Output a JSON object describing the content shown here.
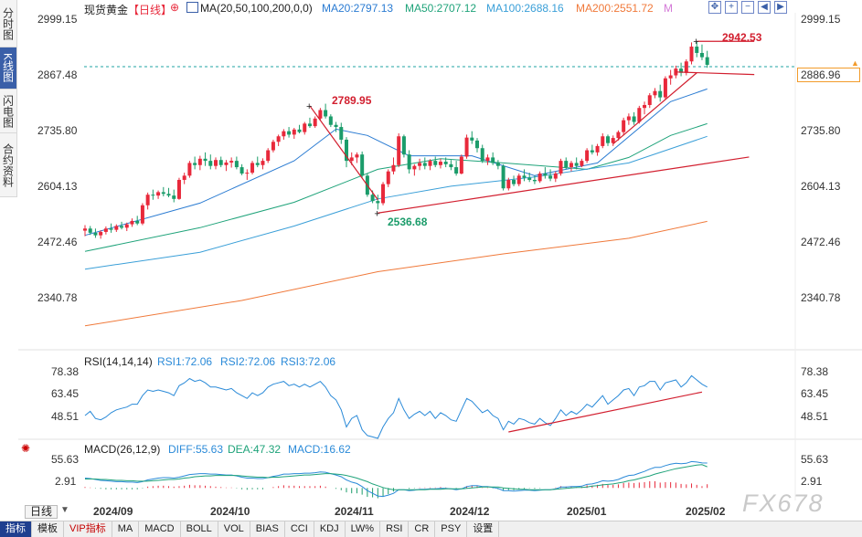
{
  "sidebar": {
    "tabs": [
      {
        "label": "分时图",
        "active": false
      },
      {
        "label": "K线图",
        "active": true
      },
      {
        "label": "闪电图",
        "active": false
      },
      {
        "label": "合约资料",
        "active": false
      }
    ]
  },
  "header": {
    "title": "现货黄金",
    "period_tag": "【日线】",
    "ma_label": "MA(20,50,100,200,0,0)",
    "ma20": "MA20:2797.13",
    "ma50": "MA50:2707.12",
    "ma100": "MA100:2688.16",
    "ma200": "MA200:2551.72",
    "m_mark": "M"
  },
  "colors": {
    "up": "#e8293b",
    "down": "#1b9c6a",
    "ma20": "#2a7bd2",
    "ma50": "#1fa37a",
    "ma100": "#3a9fd8",
    "ma200": "#f0793a",
    "trend": "#d21f2f",
    "rsi": "#2a8ad8",
    "diff": "#2a8ad8",
    "dea": "#1fa37a",
    "accent": "#3a5fa8"
  },
  "price_axis": {
    "labels": [
      "2999.15",
      "2867.48",
      "2735.80",
      "2604.13",
      "2472.46",
      "2340.78"
    ],
    "current": "2886.96"
  },
  "annotations": {
    "high": "2942.53",
    "peak_nov": "2789.95",
    "low_nov": "2536.68"
  },
  "rsi_panel": {
    "title": "RSI(14,14,14)",
    "rsi1": "RSI1:72.06",
    "rsi2": "RSI2:72.06",
    "rsi3": "RSI3:72.06",
    "labels": [
      "78.38",
      "63.45",
      "48.51"
    ]
  },
  "macd_panel": {
    "title": "MACD(26,12,9)",
    "diff": "DIFF:55.63",
    "dea": "DEA:47.32",
    "macd": "MACD:16.62",
    "labels": [
      "55.63",
      "2.91"
    ]
  },
  "x_axis": {
    "labels": [
      "2024/09",
      "2024/10",
      "2024/11",
      "2024/12",
      "2025/01",
      "2025/02"
    ]
  },
  "period_selector": "日线",
  "bottom_tabs": [
    "指标",
    "模板",
    "VIP指标",
    "MA",
    "MACD",
    "BOLL",
    "VOL",
    "BIAS",
    "CCI",
    "KDJ",
    "LW%",
    "RSI",
    "CR",
    "PSY",
    "设置"
  ],
  "watermark": "FX678",
  "chart_data": {
    "type": "candlestick",
    "title": "现货黄金",
    "period": "日线",
    "x_labels": [
      "2024/09",
      "2024/10",
      "2024/11",
      "2024/12",
      "2025/01",
      "2025/02"
    ],
    "ylim": [
      2250,
      3020
    ],
    "y_ticks": [
      2340.78,
      2472.46,
      2604.13,
      2735.8,
      2867.48,
      2999.15
    ],
    "ohlc": [
      [
        2495,
        2508,
        2482,
        2500
      ],
      [
        2500,
        2506,
        2485,
        2490
      ],
      [
        2490,
        2500,
        2478,
        2484
      ],
      [
        2484,
        2496,
        2476,
        2492
      ],
      [
        2492,
        2505,
        2486,
        2500
      ],
      [
        2500,
        2512,
        2490,
        2497
      ],
      [
        2497,
        2510,
        2492,
        2506
      ],
      [
        2506,
        2516,
        2498,
        2502
      ],
      [
        2502,
        2514,
        2494,
        2510
      ],
      [
        2510,
        2524,
        2504,
        2518
      ],
      [
        2518,
        2530,
        2508,
        2512
      ],
      [
        2512,
        2560,
        2508,
        2555
      ],
      [
        2555,
        2585,
        2545,
        2580
      ],
      [
        2580,
        2592,
        2568,
        2578
      ],
      [
        2578,
        2590,
        2570,
        2586
      ],
      [
        2586,
        2598,
        2576,
        2582
      ],
      [
        2582,
        2596,
        2574,
        2578
      ],
      [
        2578,
        2592,
        2562,
        2570
      ],
      [
        2570,
        2620,
        2568,
        2615
      ],
      [
        2615,
        2632,
        2605,
        2625
      ],
      [
        2625,
        2660,
        2620,
        2655
      ],
      [
        2655,
        2670,
        2640,
        2650
      ],
      [
        2650,
        2672,
        2638,
        2665
      ],
      [
        2665,
        2680,
        2648,
        2660
      ],
      [
        2660,
        2675,
        2640,
        2648
      ],
      [
        2648,
        2668,
        2640,
        2662
      ],
      [
        2662,
        2670,
        2645,
        2650
      ],
      [
        2650,
        2662,
        2636,
        2656
      ],
      [
        2656,
        2668,
        2644,
        2660
      ],
      [
        2660,
        2670,
        2640,
        2645
      ],
      [
        2645,
        2652,
        2626,
        2630
      ],
      [
        2630,
        2640,
        2615,
        2632
      ],
      [
        2632,
        2660,
        2628,
        2655
      ],
      [
        2655,
        2670,
        2645,
        2650
      ],
      [
        2650,
        2666,
        2640,
        2660
      ],
      [
        2660,
        2690,
        2655,
        2685
      ],
      [
        2685,
        2710,
        2680,
        2705
      ],
      [
        2705,
        2722,
        2695,
        2718
      ],
      [
        2718,
        2735,
        2710,
        2730
      ],
      [
        2730,
        2740,
        2715,
        2722
      ],
      [
        2722,
        2738,
        2712,
        2734
      ],
      [
        2734,
        2745,
        2725,
        2728
      ],
      [
        2728,
        2752,
        2722,
        2748
      ],
      [
        2748,
        2762,
        2738,
        2742
      ],
      [
        2742,
        2765,
        2738,
        2760
      ],
      [
        2760,
        2785,
        2755,
        2780
      ],
      [
        2780,
        2795,
        2760,
        2765
      ],
      [
        2765,
        2770,
        2740,
        2745
      ],
      [
        2745,
        2752,
        2728,
        2740
      ],
      [
        2740,
        2750,
        2700,
        2710
      ],
      [
        2710,
        2716,
        2645,
        2660
      ],
      [
        2660,
        2680,
        2650,
        2668
      ],
      [
        2668,
        2680,
        2655,
        2675
      ],
      [
        2675,
        2682,
        2620,
        2625
      ],
      [
        2625,
        2630,
        2575,
        2580
      ],
      [
        2580,
        2590,
        2560,
        2565
      ],
      [
        2565,
        2580,
        2545,
        2560
      ],
      [
        2560,
        2610,
        2555,
        2605
      ],
      [
        2605,
        2640,
        2598,
        2635
      ],
      [
        2635,
        2668,
        2628,
        2650
      ],
      [
        2650,
        2725,
        2645,
        2718
      ],
      [
        2718,
        2722,
        2668,
        2675
      ],
      [
        2675,
        2685,
        2630,
        2640
      ],
      [
        2640,
        2652,
        2625,
        2648
      ],
      [
        2648,
        2665,
        2638,
        2655
      ],
      [
        2655,
        2668,
        2640,
        2648
      ],
      [
        2648,
        2664,
        2638,
        2660
      ],
      [
        2660,
        2670,
        2645,
        2650
      ],
      [
        2650,
        2665,
        2642,
        2658
      ],
      [
        2658,
        2668,
        2645,
        2652
      ],
      [
        2652,
        2662,
        2638,
        2645
      ],
      [
        2645,
        2660,
        2625,
        2630
      ],
      [
        2630,
        2675,
        2628,
        2670
      ],
      [
        2670,
        2722,
        2665,
        2715
      ],
      [
        2715,
        2730,
        2700,
        2708
      ],
      [
        2708,
        2714,
        2680,
        2690
      ],
      [
        2690,
        2698,
        2655,
        2660
      ],
      [
        2660,
        2675,
        2650,
        2668
      ],
      [
        2668,
        2680,
        2650,
        2655
      ],
      [
        2655,
        2662,
        2640,
        2648
      ],
      [
        2648,
        2652,
        2590,
        2595
      ],
      [
        2595,
        2620,
        2590,
        2615
      ],
      [
        2615,
        2625,
        2600,
        2605
      ],
      [
        2605,
        2630,
        2600,
        2625
      ],
      [
        2625,
        2640,
        2612,
        2620
      ],
      [
        2620,
        2632,
        2610,
        2615
      ],
      [
        2615,
        2625,
        2605,
        2612
      ],
      [
        2612,
        2635,
        2608,
        2630
      ],
      [
        2630,
        2645,
        2618,
        2625
      ],
      [
        2625,
        2640,
        2612,
        2618
      ],
      [
        2618,
        2635,
        2610,
        2630
      ],
      [
        2630,
        2665,
        2625,
        2660
      ],
      [
        2660,
        2668,
        2640,
        2645
      ],
      [
        2645,
        2660,
        2635,
        2655
      ],
      [
        2655,
        2668,
        2640,
        2648
      ],
      [
        2648,
        2665,
        2645,
        2660
      ],
      [
        2660,
        2690,
        2655,
        2685
      ],
      [
        2685,
        2698,
        2675,
        2680
      ],
      [
        2680,
        2700,
        2672,
        2695
      ],
      [
        2695,
        2725,
        2690,
        2718
      ],
      [
        2718,
        2722,
        2695,
        2702
      ],
      [
        2702,
        2720,
        2695,
        2714
      ],
      [
        2714,
        2732,
        2708,
        2728
      ],
      [
        2728,
        2762,
        2720,
        2756
      ],
      [
        2756,
        2772,
        2745,
        2765
      ],
      [
        2765,
        2775,
        2745,
        2752
      ],
      [
        2752,
        2790,
        2748,
        2785
      ],
      [
        2785,
        2800,
        2770,
        2792
      ],
      [
        2792,
        2820,
        2785,
        2815
      ],
      [
        2815,
        2832,
        2808,
        2825
      ],
      [
        2825,
        2840,
        2800,
        2810
      ],
      [
        2810,
        2860,
        2806,
        2855
      ],
      [
        2855,
        2875,
        2840,
        2862
      ],
      [
        2862,
        2885,
        2855,
        2878
      ],
      [
        2878,
        2892,
        2860,
        2868
      ],
      [
        2868,
        2900,
        2862,
        2895
      ],
      [
        2895,
        2940,
        2888,
        2930
      ],
      [
        2930,
        2942.53,
        2905,
        2915
      ],
      [
        2915,
        2935,
        2898,
        2905
      ],
      [
        2905,
        2920,
        2880,
        2886.96
      ]
    ],
    "ma": {
      "MA20": [
        [
          0,
          2484
        ],
        [
          22,
          2560
        ],
        [
          40,
          2660
        ],
        [
          48,
          2735
        ],
        [
          54,
          2720
        ],
        [
          62,
          2672
        ],
        [
          74,
          2672
        ],
        [
          86,
          2625
        ],
        [
          98,
          2655
        ],
        [
          112,
          2800
        ],
        [
          119,
          2830
        ]
      ],
      "MA50": [
        [
          0,
          2446
        ],
        [
          22,
          2502
        ],
        [
          40,
          2562
        ],
        [
          56,
          2640
        ],
        [
          68,
          2665
        ],
        [
          80,
          2655
        ],
        [
          96,
          2640
        ],
        [
          104,
          2668
        ],
        [
          112,
          2720
        ],
        [
          119,
          2748
        ]
      ],
      "MA100": [
        [
          0,
          2404
        ],
        [
          22,
          2444
        ],
        [
          40,
          2506
        ],
        [
          56,
          2570
        ],
        [
          70,
          2600
        ],
        [
          86,
          2622
        ],
        [
          104,
          2655
        ],
        [
          119,
          2718
        ]
      ],
      "MA200": [
        [
          0,
          2270
        ],
        [
          30,
          2330
        ],
        [
          56,
          2398
        ],
        [
          80,
          2440
        ],
        [
          104,
          2477
        ],
        [
          119,
          2517
        ]
      ]
    },
    "trendlines": [
      {
        "from": [
          56,
          2536.68
        ],
        "to": [
          127,
          2669
        ]
      },
      {
        "from": [
          43,
          2789.95
        ],
        "to": [
          56,
          2568
        ]
      },
      {
        "from": [
          101,
          2700
        ],
        "to": [
          117,
          2868
        ]
      },
      {
        "from": [
          113,
          2870
        ],
        "to": [
          128,
          2864
        ]
      },
      {
        "from": [
          117,
          2942.53
        ],
        "to": [
          128,
          2942.53
        ]
      }
    ],
    "rsi": {
      "ylim": [
        36,
        86
      ],
      "values": [
        52,
        55,
        50,
        49,
        51,
        54,
        56,
        57,
        58,
        60,
        60,
        66,
        70,
        69,
        70,
        69,
        68,
        66,
        73,
        75,
        78,
        76,
        77,
        75,
        72,
        72,
        71,
        70,
        71,
        68,
        66,
        64,
        68,
        66,
        68,
        72,
        74,
        75,
        76,
        73,
        74,
        72,
        74,
        72,
        74,
        76,
        72,
        66,
        63,
        56,
        44,
        50,
        52,
        42,
        38,
        37,
        36,
        44,
        50,
        54,
        64,
        56,
        50,
        53,
        55,
        52,
        55,
        50,
        54,
        52,
        49,
        48,
        56,
        64,
        62,
        58,
        54,
        56,
        52,
        50,
        42,
        48,
        46,
        50,
        49,
        47,
        46,
        50,
        47,
        45,
        50,
        56,
        52,
        55,
        53,
        56,
        60,
        58,
        62,
        66,
        60,
        63,
        66,
        70,
        71,
        66,
        72,
        73,
        76,
        76,
        70,
        75,
        76,
        77,
        72,
        75,
        80,
        77,
        74,
        72
      ],
      "trendline": {
        "from": [
          81,
          40.5
        ],
        "to": [
          118,
          68.5
        ]
      }
    },
    "macd": {
      "diff": [
        22,
        21,
        19,
        17,
        16,
        15,
        14,
        14,
        13,
        13,
        12,
        14,
        18,
        20,
        22,
        23,
        23,
        22,
        24,
        27,
        30,
        31,
        32,
        32,
        31,
        31,
        30,
        29,
        29,
        27,
        24,
        22,
        22,
        21,
        21,
        23,
        26,
        28,
        31,
        31,
        32,
        32,
        33,
        33,
        34,
        36,
        35,
        32,
        29,
        25,
        18,
        13,
        10,
        3,
        -6,
        -12,
        -18,
        -19,
        -16,
        -12,
        -4,
        -4,
        -6,
        -5,
        -3,
        -3,
        -2,
        -2,
        -1,
        -1,
        -2,
        -4,
        -2,
        3,
        5,
        5,
        3,
        3,
        1,
        -1,
        -6,
        -6,
        -7,
        -6,
        -5,
        -5,
        -6,
        -5,
        -4,
        -4,
        -2,
        2,
        2,
        3,
        3,
        4,
        8,
        9,
        12,
        16,
        15,
        16,
        19,
        24,
        28,
        29,
        33,
        37,
        42,
        46,
        46,
        50,
        53,
        55,
        54,
        55,
        59,
        58,
        56,
        55.63
      ],
      "dea": [
        20,
        20,
        20,
        19,
        19,
        18,
        17,
        17,
        16,
        16,
        15,
        15,
        15,
        16,
        17,
        18,
        19,
        19,
        20,
        22,
        23,
        25,
        26,
        27,
        27,
        28,
        28,
        28,
        28,
        28,
        27,
        26,
        25,
        24,
        24,
        23,
        24,
        24,
        25,
        26,
        27,
        28,
        29,
        29,
        30,
        31,
        32,
        32,
        31,
        30,
        28,
        25,
        22,
        18,
        14,
        9,
        5,
        1,
        -2,
        -4,
        -4,
        -4,
        -4,
        -4,
        -4,
        -4,
        -3,
        -3,
        -3,
        -2,
        -2,
        -2,
        -2,
        -1,
        0,
        1,
        2,
        2,
        2,
        2,
        0,
        -1,
        -2,
        -3,
        -3,
        -4,
        -4,
        -4,
        -4,
        -4,
        -3,
        -2,
        -1,
        0,
        1,
        1,
        2,
        4,
        5,
        7,
        8,
        9,
        11,
        13,
        16,
        18,
        21,
        24,
        27,
        31,
        34,
        37,
        40,
        43,
        45,
        47,
        49,
        51,
        52,
        47.32
      ],
      "ylim": [
        -28,
        70
      ]
    }
  }
}
